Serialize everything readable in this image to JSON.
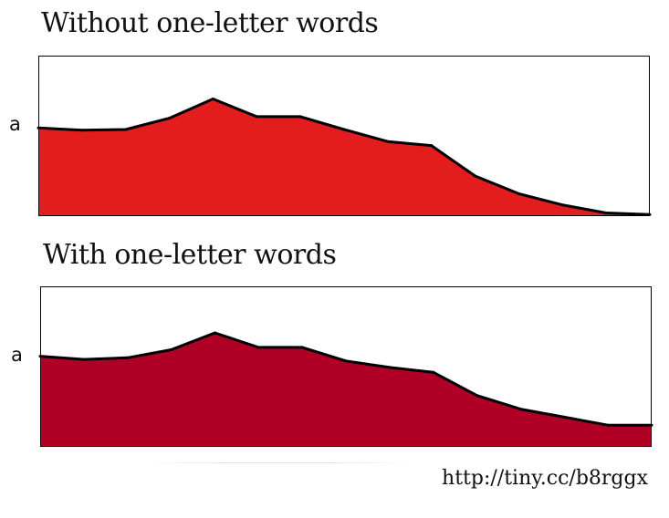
{
  "colors": {
    "without_fill": "#e31d1d",
    "with_fill": "#b00026",
    "outline": "#000000",
    "frame": "#000000"
  },
  "source_url": "http://tiny.cc/b8rggx",
  "chart_data": [
    {
      "type": "area",
      "title": "Without one-letter words",
      "ylabel": "a",
      "xlabel": "",
      "grid": false,
      "legend": "none",
      "x": [
        1,
        2,
        3,
        4,
        5,
        6,
        7,
        8,
        9,
        10,
        11,
        12,
        13,
        14,
        15
      ],
      "values": [
        0.55,
        0.535,
        0.54,
        0.61,
        0.73,
        0.62,
        0.62,
        0.54,
        0.465,
        0.44,
        0.25,
        0.14,
        0.07,
        0.02,
        0.01
      ],
      "ylim": [
        0,
        1
      ]
    },
    {
      "type": "area",
      "title": "With one-letter words",
      "ylabel": "a",
      "xlabel": "",
      "grid": false,
      "legend": "none",
      "x": [
        1,
        2,
        3,
        4,
        5,
        6,
        7,
        8,
        9,
        10,
        11,
        12,
        13,
        14,
        15
      ],
      "values": [
        0.565,
        0.545,
        0.555,
        0.605,
        0.71,
        0.62,
        0.62,
        0.535,
        0.495,
        0.465,
        0.32,
        0.235,
        0.185,
        0.135,
        0.135
      ],
      "ylim": [
        0,
        1
      ]
    }
  ]
}
